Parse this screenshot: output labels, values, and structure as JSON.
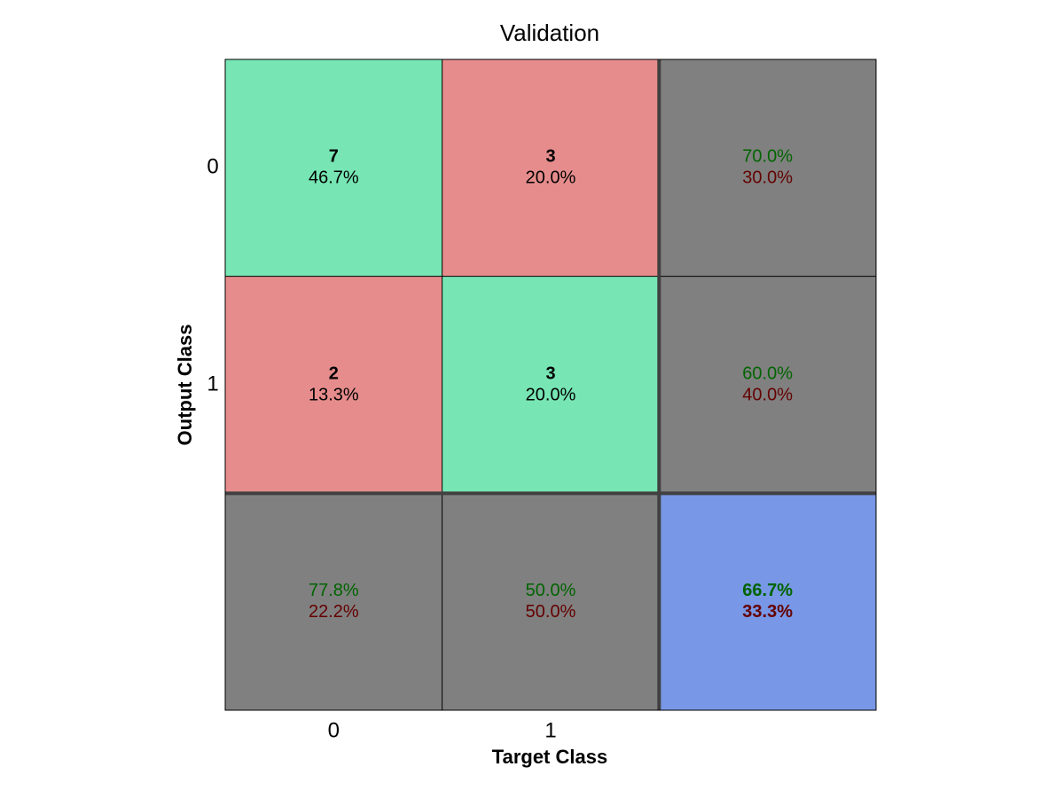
{
  "chart_data": {
    "type": "heatmap",
    "title": "Validation",
    "xlabel": "Target Class",
    "ylabel": "Output Class",
    "class_labels": [
      "0",
      "1"
    ],
    "matrix": [
      [
        {
          "count": "7",
          "percent": "46.7%"
        },
        {
          "count": "3",
          "percent": "20.0%"
        }
      ],
      [
        {
          "count": "2",
          "percent": "13.3%"
        },
        {
          "count": "3",
          "percent": "20.0%"
        }
      ]
    ],
    "row_summary": [
      {
        "correct": "70.0%",
        "incorrect": "30.0%"
      },
      {
        "correct": "60.0%",
        "incorrect": "40.0%"
      }
    ],
    "column_summary": [
      {
        "correct": "77.8%",
        "incorrect": "22.2%"
      },
      {
        "correct": "50.0%",
        "incorrect": "50.0%"
      }
    ],
    "overall": {
      "correct": "66.7%",
      "incorrect": "33.3%"
    },
    "colors": {
      "correct_cell": "#77e6b4",
      "incorrect_cell": "#e68c8c",
      "summary_cell": "#808080",
      "overall_cell": "#7897e6",
      "correct_text": "#006400",
      "incorrect_text": "#640000",
      "grid_line": "#000000",
      "separator": "#404040"
    }
  }
}
